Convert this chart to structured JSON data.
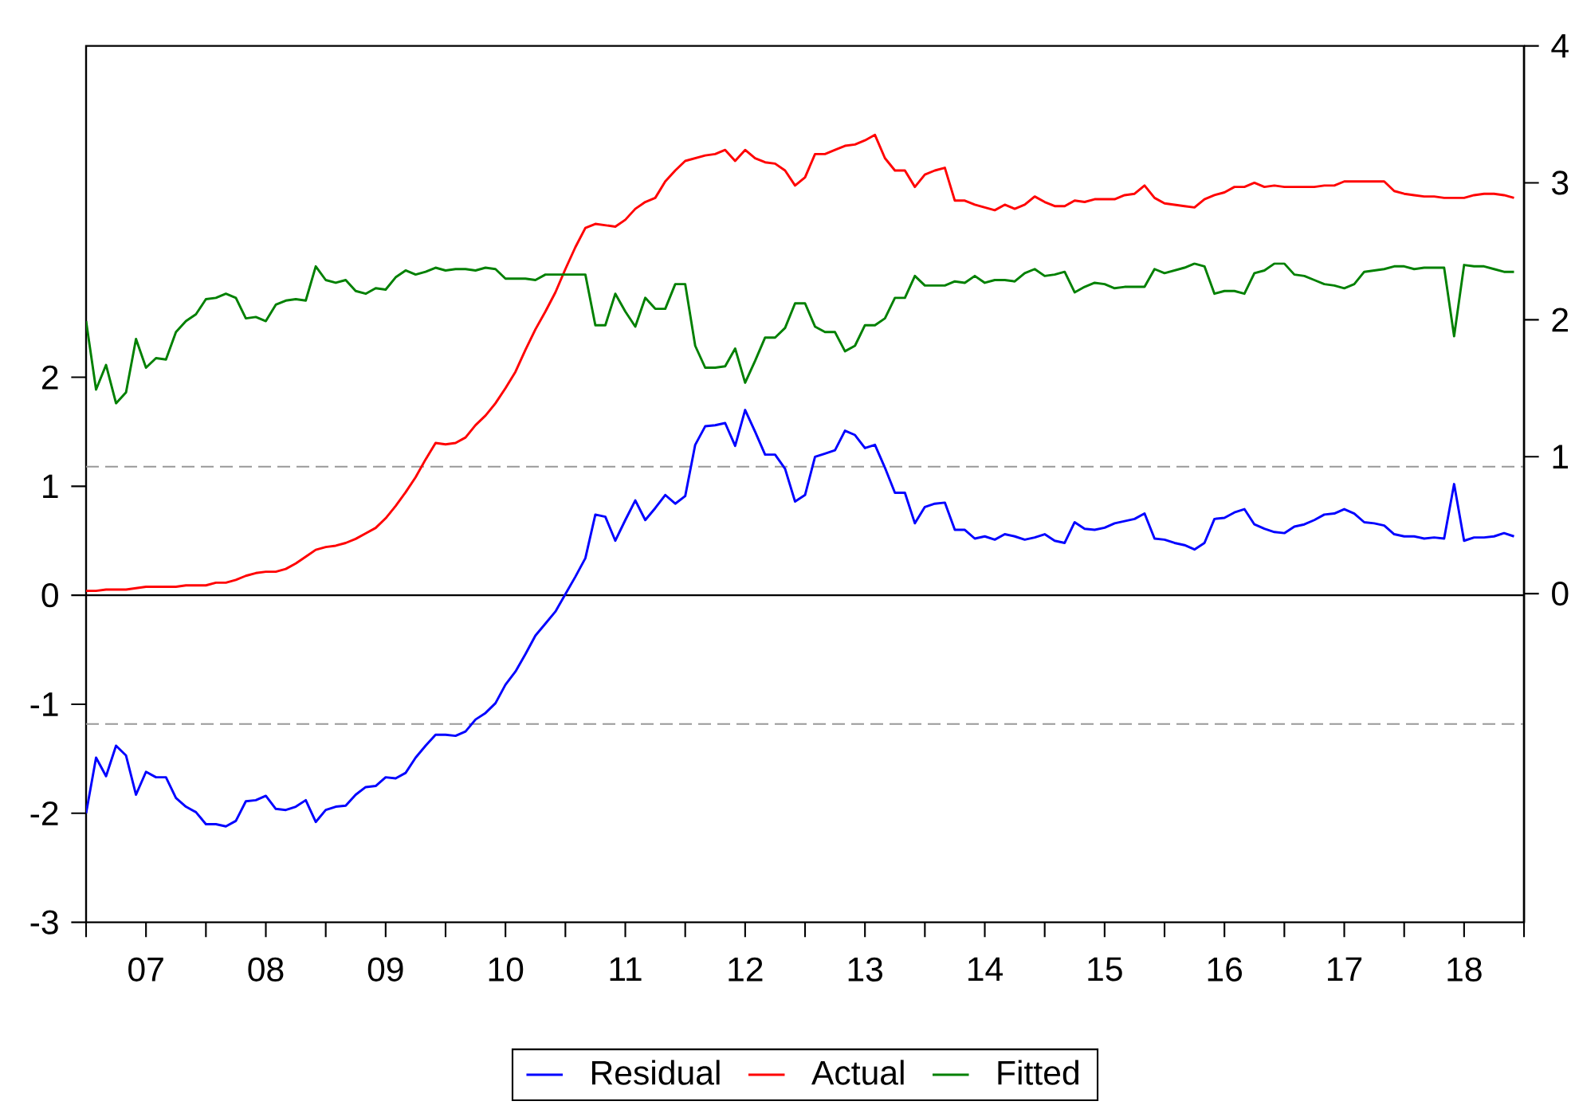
{
  "chart_data": {
    "type": "line",
    "x": [
      "2007-01",
      "2007-02",
      "2007-03",
      "2007-04",
      "2007-05",
      "2007-06",
      "2007-07",
      "2007-08",
      "2007-09",
      "2007-10",
      "2007-11",
      "2007-12",
      "2008-01",
      "2008-02",
      "2008-03",
      "2008-04",
      "2008-05",
      "2008-06",
      "2008-07",
      "2008-08",
      "2008-09",
      "2008-10",
      "2008-11",
      "2008-12",
      "2009-01",
      "2009-02",
      "2009-03",
      "2009-04",
      "2009-05",
      "2009-06",
      "2009-07",
      "2009-08",
      "2009-09",
      "2009-10",
      "2009-11",
      "2009-12",
      "2010-01",
      "2010-02",
      "2010-03",
      "2010-04",
      "2010-05",
      "2010-06",
      "2010-07",
      "2010-08",
      "2010-09",
      "2010-10",
      "2010-11",
      "2010-12",
      "2011-01",
      "2011-02",
      "2011-03",
      "2011-04",
      "2011-05",
      "2011-06",
      "2011-07",
      "2011-08",
      "2011-09",
      "2011-10",
      "2011-11",
      "2011-12",
      "2012-01",
      "2012-02",
      "2012-03",
      "2012-04",
      "2012-05",
      "2012-06",
      "2012-07",
      "2012-08",
      "2012-09",
      "2012-10",
      "2012-11",
      "2012-12",
      "2013-01",
      "2013-02",
      "2013-03",
      "2013-04",
      "2013-05",
      "2013-06",
      "2013-07",
      "2013-08",
      "2013-09",
      "2013-10",
      "2013-11",
      "2013-12",
      "2014-01",
      "2014-02",
      "2014-03",
      "2014-04",
      "2014-05",
      "2014-06",
      "2014-07",
      "2014-08",
      "2014-09",
      "2014-10",
      "2014-11",
      "2014-12",
      "2015-01",
      "2015-02",
      "2015-03",
      "2015-04",
      "2015-05",
      "2015-06",
      "2015-07",
      "2015-08",
      "2015-09",
      "2015-10",
      "2015-11",
      "2015-12",
      "2016-01",
      "2016-02",
      "2016-03",
      "2016-04",
      "2016-05",
      "2016-06",
      "2016-07",
      "2016-08",
      "2016-09",
      "2016-10",
      "2016-11",
      "2016-12",
      "2017-01",
      "2017-02",
      "2017-03",
      "2017-04",
      "2017-05",
      "2017-06",
      "2017-07",
      "2017-08",
      "2017-09",
      "2017-10",
      "2017-11",
      "2017-12",
      "2018-01",
      "2018-02",
      "2018-03",
      "2018-04",
      "2018-05",
      "2018-06",
      "2018-07",
      "2018-08",
      "2018-09",
      "2018-10",
      "2018-11",
      "2018-12"
    ],
    "series": [
      {
        "name": "Residual",
        "color": "#0000ff",
        "values": [
          -2.0,
          -1.49,
          -1.66,
          -1.38,
          -1.47,
          -1.83,
          -1.62,
          -1.67,
          -1.67,
          -1.86,
          -1.94,
          -1.99,
          -2.1,
          -2.1,
          -2.12,
          -2.07,
          -1.89,
          -1.88,
          -1.84,
          -1.96,
          -1.97,
          -1.94,
          -1.88,
          -2.08,
          -1.97,
          -1.94,
          -1.93,
          -1.83,
          -1.76,
          -1.75,
          -1.67,
          -1.68,
          -1.63,
          -1.49,
          -1.38,
          -1.28,
          -1.28,
          -1.29,
          -1.25,
          -1.14,
          -1.08,
          -0.99,
          -0.82,
          -0.7,
          -0.54,
          -0.37,
          -0.26,
          -0.15,
          0.01,
          0.17,
          0.34,
          0.74,
          0.72,
          0.5,
          0.69,
          0.87,
          0.69,
          0.8,
          0.92,
          0.84,
          0.91,
          1.38,
          1.55,
          1.56,
          1.58,
          1.37,
          1.7,
          1.5,
          1.29,
          1.29,
          1.16,
          0.86,
          0.92,
          1.27,
          1.3,
          1.33,
          1.51,
          1.47,
          1.35,
          1.38,
          1.17,
          0.94,
          0.94,
          0.66,
          0.81,
          0.84,
          0.85,
          0.6,
          0.6,
          0.52,
          0.54,
          0.51,
          0.56,
          0.54,
          0.51,
          0.53,
          0.56,
          0.5,
          0.48,
          0.67,
          0.61,
          0.6,
          0.62,
          0.66,
          0.68,
          0.7,
          0.75,
          0.52,
          0.51,
          0.48,
          0.46,
          0.42,
          0.48,
          0.7,
          0.71,
          0.76,
          0.79,
          0.65,
          0.61,
          0.58,
          0.57,
          0.63,
          0.65,
          0.69,
          0.74,
          0.75,
          0.79,
          0.75,
          0.67,
          0.66,
          0.64,
          0.56,
          0.54,
          0.54,
          0.52,
          0.53,
          0.52,
          1.02,
          0.5,
          0.53,
          0.53,
          0.54,
          0.57,
          0.54
        ]
      },
      {
        "name": "Actual",
        "color": "#ff0000",
        "axis": "y2",
        "values": [
          0.02,
          0.02,
          0.03,
          0.03,
          0.03,
          0.04,
          0.05,
          0.05,
          0.05,
          0.05,
          0.06,
          0.06,
          0.06,
          0.08,
          0.08,
          0.1,
          0.13,
          0.15,
          0.16,
          0.16,
          0.18,
          0.22,
          0.27,
          0.32,
          0.34,
          0.35,
          0.37,
          0.4,
          0.44,
          0.48,
          0.55,
          0.64,
          0.74,
          0.85,
          0.98,
          1.1,
          1.09,
          1.1,
          1.14,
          1.23,
          1.3,
          1.39,
          1.5,
          1.62,
          1.78,
          1.93,
          2.06,
          2.2,
          2.37,
          2.53,
          2.67,
          2.7,
          2.69,
          2.68,
          2.73,
          2.81,
          2.86,
          2.89,
          3.01,
          3.09,
          3.16,
          3.18,
          3.2,
          3.21,
          3.24,
          3.16,
          3.24,
          3.18,
          3.15,
          3.14,
          3.09,
          2.98,
          3.04,
          3.21,
          3.21,
          3.24,
          3.27,
          3.28,
          3.31,
          3.35,
          3.18,
          3.09,
          3.09,
          2.97,
          3.06,
          3.09,
          3.11,
          2.87,
          2.87,
          2.84,
          2.82,
          2.8,
          2.84,
          2.81,
          2.84,
          2.9,
          2.86,
          2.83,
          2.83,
          2.87,
          2.86,
          2.88,
          2.88,
          2.88,
          2.91,
          2.92,
          2.98,
          2.89,
          2.85,
          2.84,
          2.83,
          2.82,
          2.88,
          2.91,
          2.93,
          2.97,
          2.97,
          3.0,
          2.97,
          2.98,
          2.97,
          2.97,
          2.97,
          2.97,
          2.98,
          2.98,
          3.01,
          3.01,
          3.01,
          3.01,
          3.01,
          2.94,
          2.92,
          2.91,
          2.9,
          2.9,
          2.89,
          2.89,
          2.89,
          2.91,
          2.92,
          2.92,
          2.91,
          2.89
        ]
      },
      {
        "name": "Fitted",
        "color": "#008000",
        "axis": "y2",
        "values": [
          1.99,
          1.49,
          1.67,
          1.39,
          1.47,
          1.86,
          1.65,
          1.72,
          1.71,
          1.91,
          1.99,
          2.04,
          2.15,
          2.16,
          2.19,
          2.16,
          2.01,
          2.02,
          1.99,
          2.11,
          2.14,
          2.15,
          2.14,
          2.39,
          2.29,
          2.27,
          2.29,
          2.21,
          2.19,
          2.23,
          2.22,
          2.31,
          2.36,
          2.33,
          2.35,
          2.38,
          2.36,
          2.37,
          2.37,
          2.36,
          2.38,
          2.37,
          2.3,
          2.3,
          2.3,
          2.29,
          2.33,
          2.33,
          2.33,
          2.33,
          2.33,
          1.96,
          1.96,
          2.19,
          2.06,
          1.95,
          2.16,
          2.08,
          2.08,
          2.26,
          2.26,
          1.81,
          1.65,
          1.65,
          1.66,
          1.79,
          1.54,
          1.7,
          1.87,
          1.87,
          1.94,
          2.12,
          2.12,
          1.95,
          1.91,
          1.91,
          1.77,
          1.81,
          1.96,
          1.96,
          2.01,
          2.16,
          2.16,
          2.32,
          2.25,
          2.25,
          2.25,
          2.28,
          2.27,
          2.32,
          2.27,
          2.29,
          2.29,
          2.28,
          2.34,
          2.37,
          2.32,
          2.33,
          2.35,
          2.2,
          2.24,
          2.27,
          2.26,
          2.23,
          2.24,
          2.24,
          2.24,
          2.37,
          2.34,
          2.36,
          2.38,
          2.41,
          2.39,
          2.19,
          2.21,
          2.21,
          2.19,
          2.34,
          2.36,
          2.41,
          2.41,
          2.33,
          2.32,
          2.29,
          2.26,
          2.25,
          2.23,
          2.26,
          2.35,
          2.36,
          2.37,
          2.39,
          2.39,
          2.37,
          2.38,
          2.38,
          2.38,
          1.88,
          2.4,
          2.39,
          2.39,
          2.37,
          2.35,
          2.35
        ]
      }
    ],
    "xlim": [
      "2007-01",
      "2019-01"
    ],
    "xticks": [
      {
        "value": "2007-01",
        "label": null
      },
      {
        "value": "2007-07",
        "label": "07"
      },
      {
        "value": "2008-01",
        "label": null
      },
      {
        "value": "2008-07",
        "label": "08"
      },
      {
        "value": "2009-01",
        "label": null
      },
      {
        "value": "2009-07",
        "label": "09"
      },
      {
        "value": "2010-01",
        "label": null
      },
      {
        "value": "2010-07",
        "label": "10"
      },
      {
        "value": "2011-01",
        "label": null
      },
      {
        "value": "2011-07",
        "label": "11"
      },
      {
        "value": "2012-01",
        "label": null
      },
      {
        "value": "2012-07",
        "label": "12"
      },
      {
        "value": "2013-01",
        "label": null
      },
      {
        "value": "2013-07",
        "label": "13"
      },
      {
        "value": "2014-01",
        "label": null
      },
      {
        "value": "2014-07",
        "label": "14"
      },
      {
        "value": "2015-01",
        "label": null
      },
      {
        "value": "2015-07",
        "label": "15"
      },
      {
        "value": "2016-01",
        "label": null
      },
      {
        "value": "2016-07",
        "label": "16"
      },
      {
        "value": "2017-01",
        "label": null
      },
      {
        "value": "2017-07",
        "label": "17"
      },
      {
        "value": "2018-01",
        "label": null
      },
      {
        "value": "2018-07",
        "label": "18"
      },
      {
        "value": "2019-01",
        "label": null
      }
    ],
    "ylim": [
      -3,
      5.04
    ],
    "yticks": [
      -3,
      -2,
      -1,
      0,
      1,
      2
    ],
    "y2lim": [
      -2.4,
      4
    ],
    "y2ticks": [
      0,
      1,
      2,
      3,
      4
    ],
    "ref_lines": [
      {
        "axis": "y",
        "value": 0,
        "color": "#000000",
        "line_style": "solid"
      },
      {
        "axis": "y",
        "value": 1.18,
        "color": "#999999",
        "line_style": "dashed"
      },
      {
        "axis": "y",
        "value": -1.18,
        "color": "#999999",
        "line_style": "dashed"
      }
    ],
    "legend": "bottom"
  }
}
